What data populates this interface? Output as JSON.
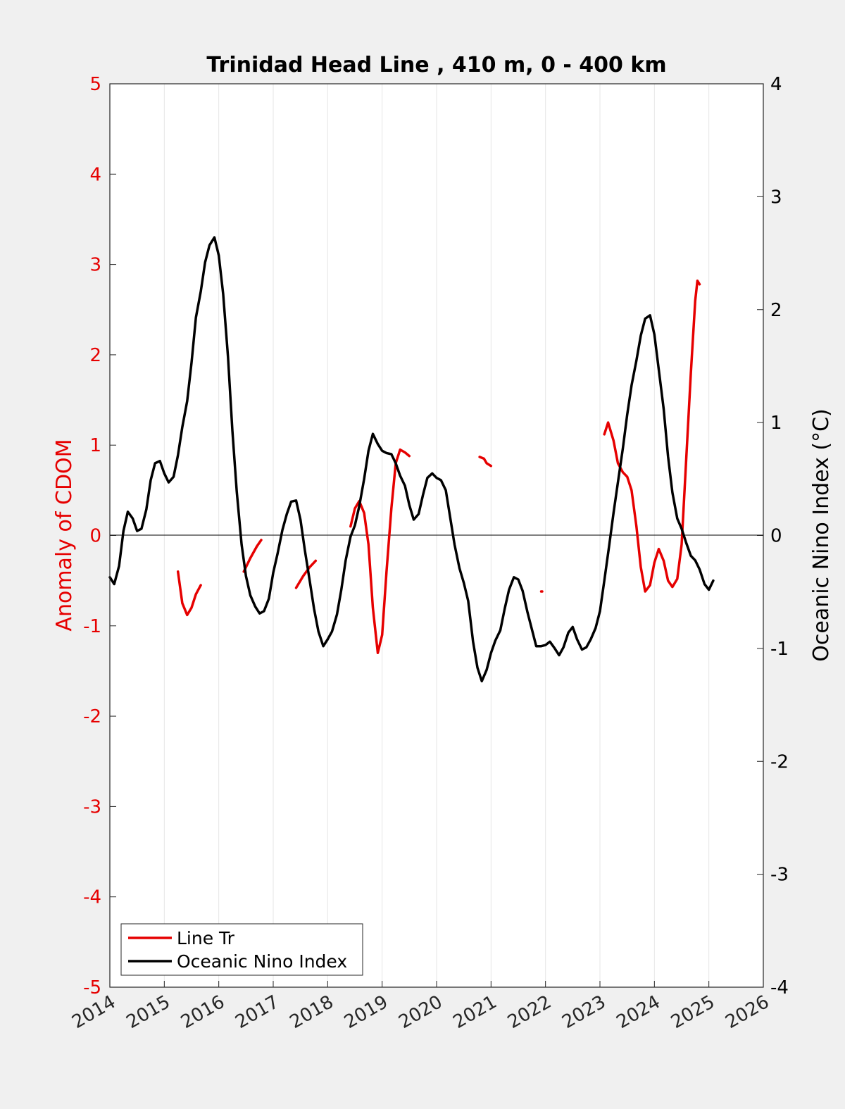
{
  "chart_data": {
    "type": "line",
    "title": "Trinidad Head Line , 410 m, 0 - 400 km",
    "left_axis": {
      "label": "Anomaly of CDOM",
      "color": "#e60000",
      "range": [
        -5,
        5
      ],
      "ticks": [
        "5",
        "4",
        "3",
        "2",
        "1",
        "0",
        "-1",
        "-2",
        "-3",
        "-4",
        "-5"
      ]
    },
    "right_axis": {
      "label": "Oceanic Nino Index (°C)",
      "color": "#000000",
      "range": [
        -4,
        4
      ],
      "ticks": [
        "4",
        "3",
        "2",
        "1",
        "0",
        "-1",
        "-2",
        "-3",
        "-4"
      ]
    },
    "x_axis": {
      "range": [
        2014,
        2026
      ],
      "ticks": [
        "2014",
        "2015",
        "2016",
        "2017",
        "2018",
        "2019",
        "2020",
        "2021",
        "2022",
        "2023",
        "2024",
        "2025",
        "2026"
      ]
    },
    "grid": "vertical",
    "legend_position": "bottom-left",
    "legend": [
      "Line Tr",
      "Oceanic Nino Index"
    ],
    "series": [
      {
        "name": "Line Tr",
        "axis": "left",
        "color": "#e60000",
        "segments": [
          [
            [
              2015.25,
              -0.4
            ],
            [
              2015.33,
              -0.75
            ],
            [
              2015.42,
              -0.88
            ],
            [
              2015.5,
              -0.8
            ],
            [
              2015.58,
              -0.65
            ],
            [
              2015.67,
              -0.55
            ]
          ],
          [
            [
              2016.46,
              -0.4
            ],
            [
              2016.58,
              -0.25
            ],
            [
              2016.7,
              -0.12
            ],
            [
              2016.78,
              -0.05
            ]
          ],
          [
            [
              2017.42,
              -0.58
            ],
            [
              2017.55,
              -0.45
            ],
            [
              2017.67,
              -0.35
            ],
            [
              2017.78,
              -0.28
            ]
          ],
          [
            [
              2018.42,
              0.1
            ],
            [
              2018.5,
              0.3
            ],
            [
              2018.58,
              0.38
            ],
            [
              2018.67,
              0.25
            ],
            [
              2018.75,
              -0.1
            ],
            [
              2018.83,
              -0.8
            ],
            [
              2018.92,
              -1.3
            ],
            [
              2019.0,
              -1.1
            ],
            [
              2019.08,
              -0.4
            ],
            [
              2019.17,
              0.3
            ],
            [
              2019.25,
              0.8
            ],
            [
              2019.33,
              0.95
            ],
            [
              2019.42,
              0.92
            ],
            [
              2019.5,
              0.88
            ]
          ],
          [
            [
              2020.79,
              0.87
            ],
            [
              2020.87,
              0.85
            ],
            [
              2020.92,
              0.8
            ],
            [
              2021.0,
              0.77
            ]
          ],
          [
            [
              2021.92,
              -0.62
            ],
            [
              2021.94,
              -0.62
            ]
          ],
          [
            [
              2023.08,
              1.12
            ],
            [
              2023.15,
              1.25
            ],
            [
              2023.25,
              1.05
            ],
            [
              2023.33,
              0.8
            ],
            [
              2023.42,
              0.7
            ],
            [
              2023.5,
              0.65
            ],
            [
              2023.58,
              0.5
            ],
            [
              2023.67,
              0.1
            ],
            [
              2023.75,
              -0.35
            ],
            [
              2023.83,
              -0.62
            ],
            [
              2023.92,
              -0.55
            ],
            [
              2024.0,
              -0.3
            ],
            [
              2024.08,
              -0.15
            ],
            [
              2024.17,
              -0.28
            ],
            [
              2024.25,
              -0.5
            ],
            [
              2024.33,
              -0.57
            ],
            [
              2024.42,
              -0.48
            ],
            [
              2024.5,
              -0.1
            ],
            [
              2024.58,
              0.8
            ],
            [
              2024.67,
              1.8
            ],
            [
              2024.75,
              2.6
            ],
            [
              2024.79,
              2.82
            ],
            [
              2024.83,
              2.78
            ]
          ]
        ]
      },
      {
        "name": "Oceanic Nino Index",
        "axis": "right",
        "color": "#000000",
        "points": [
          [
            2014.0,
            -0.37
          ],
          [
            2014.08,
            -0.43
          ],
          [
            2014.17,
            -0.27
          ],
          [
            2014.25,
            0.04
          ],
          [
            2014.33,
            0.21
          ],
          [
            2014.42,
            0.15
          ],
          [
            2014.5,
            0.04
          ],
          [
            2014.58,
            0.06
          ],
          [
            2014.67,
            0.23
          ],
          [
            2014.75,
            0.49
          ],
          [
            2014.83,
            0.64
          ],
          [
            2014.92,
            0.66
          ],
          [
            2015.0,
            0.55
          ],
          [
            2015.08,
            0.47
          ],
          [
            2015.17,
            0.52
          ],
          [
            2015.25,
            0.71
          ],
          [
            2015.33,
            0.96
          ],
          [
            2015.42,
            1.19
          ],
          [
            2015.5,
            1.53
          ],
          [
            2015.58,
            1.93
          ],
          [
            2015.67,
            2.16
          ],
          [
            2015.75,
            2.42
          ],
          [
            2015.83,
            2.57
          ],
          [
            2015.92,
            2.64
          ],
          [
            2016.0,
            2.48
          ],
          [
            2016.08,
            2.14
          ],
          [
            2016.17,
            1.58
          ],
          [
            2016.25,
            0.93
          ],
          [
            2016.33,
            0.39
          ],
          [
            2016.42,
            -0.08
          ],
          [
            2016.5,
            -0.36
          ],
          [
            2016.58,
            -0.53
          ],
          [
            2016.67,
            -0.63
          ],
          [
            2016.75,
            -0.69
          ],
          [
            2016.83,
            -0.67
          ],
          [
            2016.92,
            -0.56
          ],
          [
            2017.0,
            -0.33
          ],
          [
            2017.08,
            -0.16
          ],
          [
            2017.17,
            0.05
          ],
          [
            2017.25,
            0.19
          ],
          [
            2017.33,
            0.3
          ],
          [
            2017.42,
            0.31
          ],
          [
            2017.5,
            0.14
          ],
          [
            2017.58,
            -0.13
          ],
          [
            2017.67,
            -0.4
          ],
          [
            2017.75,
            -0.65
          ],
          [
            2017.83,
            -0.85
          ],
          [
            2017.92,
            -0.98
          ],
          [
            2018.0,
            -0.92
          ],
          [
            2018.08,
            -0.85
          ],
          [
            2018.17,
            -0.7
          ],
          [
            2018.25,
            -0.48
          ],
          [
            2018.33,
            -0.22
          ],
          [
            2018.42,
            -0.01
          ],
          [
            2018.5,
            0.09
          ],
          [
            2018.58,
            0.26
          ],
          [
            2018.67,
            0.5
          ],
          [
            2018.75,
            0.75
          ],
          [
            2018.83,
            0.9
          ],
          [
            2018.92,
            0.81
          ],
          [
            2019.0,
            0.75
          ],
          [
            2019.08,
            0.73
          ],
          [
            2019.17,
            0.72
          ],
          [
            2019.25,
            0.64
          ],
          [
            2019.33,
            0.53
          ],
          [
            2019.42,
            0.44
          ],
          [
            2019.5,
            0.27
          ],
          [
            2019.58,
            0.14
          ],
          [
            2019.67,
            0.19
          ],
          [
            2019.75,
            0.36
          ],
          [
            2019.83,
            0.51
          ],
          [
            2019.92,
            0.55
          ],
          [
            2020.0,
            0.51
          ],
          [
            2020.08,
            0.49
          ],
          [
            2020.17,
            0.4
          ],
          [
            2020.25,
            0.16
          ],
          [
            2020.33,
            -0.08
          ],
          [
            2020.42,
            -0.29
          ],
          [
            2020.5,
            -0.42
          ],
          [
            2020.58,
            -0.58
          ],
          [
            2020.67,
            -0.94
          ],
          [
            2020.75,
            -1.17
          ],
          [
            2020.83,
            -1.29
          ],
          [
            2020.92,
            -1.19
          ],
          [
            2021.0,
            -1.04
          ],
          [
            2021.08,
            -0.93
          ],
          [
            2021.17,
            -0.84
          ],
          [
            2021.25,
            -0.65
          ],
          [
            2021.33,
            -0.48
          ],
          [
            2021.42,
            -0.37
          ],
          [
            2021.5,
            -0.39
          ],
          [
            2021.58,
            -0.49
          ],
          [
            2021.67,
            -0.68
          ],
          [
            2021.75,
            -0.83
          ],
          [
            2021.83,
            -0.98
          ],
          [
            2021.92,
            -0.98
          ],
          [
            2022.0,
            -0.97
          ],
          [
            2022.08,
            -0.94
          ],
          [
            2022.17,
            -1.0
          ],
          [
            2022.25,
            -1.06
          ],
          [
            2022.33,
            -0.99
          ],
          [
            2022.42,
            -0.86
          ],
          [
            2022.5,
            -0.81
          ],
          [
            2022.58,
            -0.92
          ],
          [
            2022.67,
            -1.01
          ],
          [
            2022.75,
            -0.99
          ],
          [
            2022.83,
            -0.92
          ],
          [
            2022.92,
            -0.82
          ],
          [
            2023.0,
            -0.67
          ],
          [
            2023.08,
            -0.4
          ],
          [
            2023.17,
            -0.09
          ],
          [
            2023.25,
            0.2
          ],
          [
            2023.33,
            0.47
          ],
          [
            2023.42,
            0.77
          ],
          [
            2023.5,
            1.07
          ],
          [
            2023.58,
            1.33
          ],
          [
            2023.67,
            1.55
          ],
          [
            2023.75,
            1.77
          ],
          [
            2023.83,
            1.92
          ],
          [
            2023.92,
            1.95
          ],
          [
            2024.0,
            1.78
          ],
          [
            2024.08,
            1.47
          ],
          [
            2024.17,
            1.12
          ],
          [
            2024.25,
            0.7
          ],
          [
            2024.33,
            0.38
          ],
          [
            2024.42,
            0.15
          ],
          [
            2024.5,
            0.06
          ],
          [
            2024.58,
            -0.06
          ],
          [
            2024.67,
            -0.18
          ],
          [
            2024.75,
            -0.22
          ],
          [
            2024.83,
            -0.3
          ],
          [
            2024.92,
            -0.43
          ],
          [
            2025.0,
            -0.48
          ],
          [
            2025.08,
            -0.4
          ]
        ]
      }
    ]
  }
}
